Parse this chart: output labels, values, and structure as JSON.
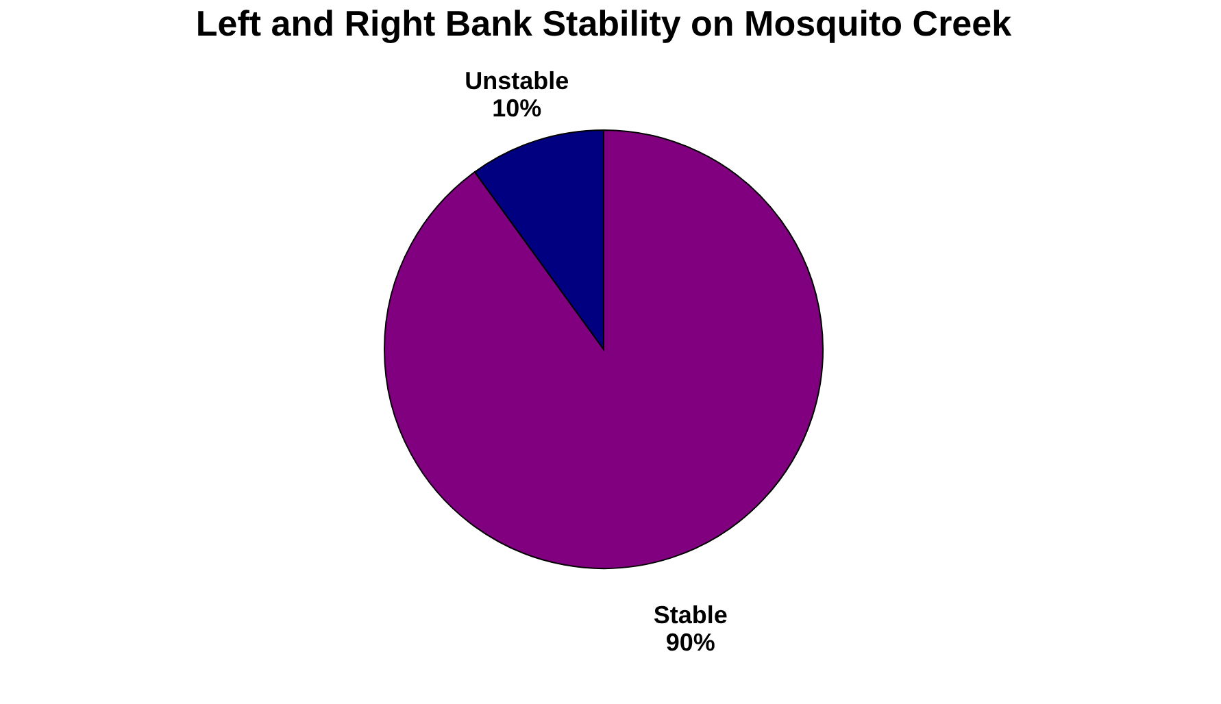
{
  "chart_data": {
    "type": "pie",
    "title": "Left and Right Bank Stability on Mosquito Creek",
    "categories": [
      "Stable",
      "Unstable"
    ],
    "values": [
      90,
      10
    ],
    "colors": [
      "#800080",
      "#000080"
    ],
    "value_labels": [
      "90%",
      "10%"
    ],
    "legend": false
  }
}
